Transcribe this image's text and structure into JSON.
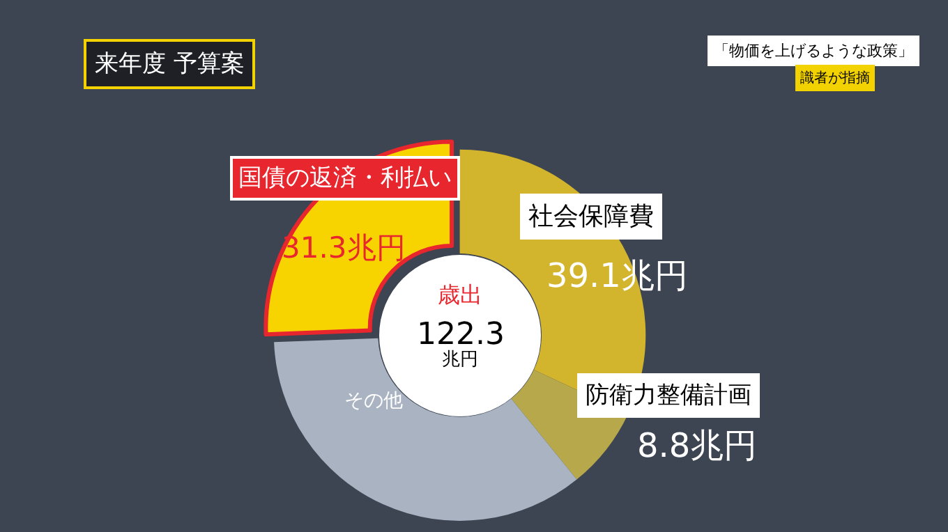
{
  "chart_data": {
    "type": "donut",
    "title": "来年度 予算案",
    "subtitle": "「物価を上げるような政策」",
    "categories": [
      "社会保障費",
      "防衛力整備計画",
      "その他",
      "国債の返済・利払い"
    ],
    "values": [
      39.1,
      8.8,
      43.1,
      31.3
    ],
    "colors": [
      "#d2b52c",
      "#b7a84c",
      "#a9b3c1",
      "#f7d400"
    ],
    "value_labels": [
      "39.1兆円",
      "8.8兆円",
      null,
      "31.3兆円"
    ],
    "annotations": [
      "識者が指摘",
      "歳出",
      "122.3",
      "兆円"
    ]
  }
}
